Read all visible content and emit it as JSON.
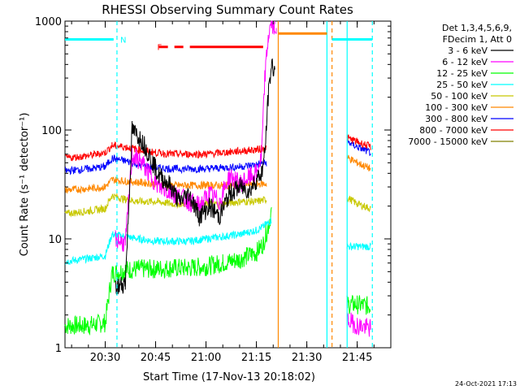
{
  "chart_data": {
    "type": "line",
    "title": "RHESSI Observing Summary Count Rates",
    "xlabel": "Start Time (17-Nov-13 20:18:02)",
    "ylabel": "Count Rate (s⁻¹ detector⁻¹)",
    "y_scale": "log",
    "ylim": [
      1,
      1000
    ],
    "xlim": [
      "20:18:02",
      "21:55:00"
    ],
    "x_ticks": [
      "20:30",
      "20:45",
      "21:00",
      "21:15",
      "21:30",
      "21:45"
    ],
    "y_ticks": [
      "1",
      "10",
      "100",
      "1000"
    ],
    "footer_date": "24-Oct-2021 17:13",
    "legend": {
      "header": [
        "Det 1,3,4,5,6,9,",
        "FDecim 1, Att 0"
      ],
      "placement": "right"
    },
    "series": [
      {
        "name": "3 - 6 keV",
        "color": "#000000",
        "x": [
          "20:33:00",
          "20:35:00",
          "20:36:00",
          "20:38:00",
          "20:41:00",
          "20:43:00",
          "20:46:00",
          "20:49:00",
          "20:52:00",
          "20:55:00",
          "20:58:00",
          "21:01:00",
          "21:04:00",
          "21:07:00",
          "21:10:00",
          "21:13:00",
          "21:15:00",
          "21:16:30",
          "21:17:30",
          "21:18:30",
          "21:19:30",
          "21:20:30"
        ],
        "y": [
          3.5,
          3.8,
          4.0,
          100,
          80,
          60,
          38,
          32,
          22,
          26,
          16,
          20,
          16,
          26,
          30,
          28,
          35,
          40,
          60,
          200,
          400,
          350
        ]
      },
      {
        "name": "6 - 12 keV",
        "color": "#ff00ff",
        "x": [
          "20:33:00",
          "20:36:00",
          "20:38:00",
          "20:41:00",
          "20:43:00",
          "20:46:00",
          "20:49:00",
          "20:52:00",
          "20:55:00",
          "20:58:00",
          "21:01:00",
          "21:04:00",
          "21:07:00",
          "21:10:00",
          "21:13:00",
          "21:15:00",
          "21:16:30",
          "21:17:30",
          "21:18:30",
          "21:19:30",
          "21:20:30",
          "21:42:00",
          "21:45:00",
          "21:49:00"
        ],
        "y": [
          10,
          9,
          58,
          50,
          40,
          30,
          27,
          25,
          22,
          20,
          26,
          22,
          38,
          32,
          37,
          40,
          55,
          300,
          700,
          1000,
          900,
          1.8,
          1.6,
          1.5
        ]
      },
      {
        "name": "12 - 25 keV",
        "color": "#00ff00",
        "x": [
          "20:18:02",
          "20:25:00",
          "20:30:00",
          "20:32:00",
          "20:36:00",
          "20:40:00",
          "20:45:00",
          "20:50:00",
          "20:55:00",
          "21:00:00",
          "21:05:00",
          "21:10:00",
          "21:15:00",
          "21:17:00",
          "21:18:30",
          "21:19:30",
          "21:42:00",
          "21:45:00",
          "21:49:00"
        ],
        "y": [
          1.6,
          1.6,
          1.7,
          4.8,
          5.2,
          5.3,
          5.3,
          5.4,
          5.4,
          5.6,
          6.0,
          6.5,
          7.5,
          9,
          13,
          18,
          2.5,
          2.5,
          2.4
        ]
      },
      {
        "name": "25 - 50 keV",
        "color": "#00ffff",
        "x": [
          "20:18:02",
          "20:25:00",
          "20:30:00",
          "20:32:00",
          "20:36:00",
          "20:40:00",
          "20:45:00",
          "20:50:00",
          "20:55:00",
          "21:00:00",
          "21:05:00",
          "21:10:00",
          "21:15:00",
          "21:17:00",
          "21:18:30",
          "21:19:30",
          "21:42:00",
          "21:45:00",
          "21:49:00"
        ],
        "y": [
          6.2,
          6.6,
          7.0,
          11,
          10.5,
          10,
          9.5,
          9.5,
          9.5,
          10,
          10.5,
          11,
          12,
          13,
          14,
          15,
          8.5,
          8.5,
          8.5
        ]
      },
      {
        "name": "50 - 100 keV",
        "color": "#c8c800",
        "x": [
          "20:18:02",
          "20:25:00",
          "20:30:00",
          "20:32:00",
          "20:36:00",
          "20:40:00",
          "20:45:00",
          "20:50:00",
          "20:55:00",
          "21:00:00",
          "21:05:00",
          "21:10:00",
          "21:15:00",
          "21:18:00",
          "21:42:00",
          "21:45:00",
          "21:49:00"
        ],
        "y": [
          17,
          18,
          19,
          25,
          23,
          22,
          22,
          21,
          21,
          21,
          21,
          22,
          22,
          23,
          24,
          21,
          19
        ]
      },
      {
        "name": "100 - 300 keV",
        "color": "#ff8800",
        "x": [
          "20:18:02",
          "20:25:00",
          "20:30:00",
          "20:32:00",
          "20:36:00",
          "20:40:00",
          "20:45:00",
          "20:50:00",
          "20:55:00",
          "21:00:00",
          "21:05:00",
          "21:10:00",
          "21:15:00",
          "21:18:00",
          "21:42:00",
          "21:45:00",
          "21:49:00"
        ],
        "y": [
          28,
          29,
          30,
          35,
          34,
          33,
          32,
          31,
          31,
          31,
          31,
          31,
          32,
          32,
          56,
          50,
          44
        ]
      },
      {
        "name": "300 - 800 keV",
        "color": "#0000ff",
        "x": [
          "20:18:02",
          "20:25:00",
          "20:30:00",
          "20:32:00",
          "20:36:00",
          "20:40:00",
          "20:45:00",
          "20:50:00",
          "20:55:00",
          "21:00:00",
          "21:05:00",
          "21:10:00",
          "21:15:00",
          "21:18:00",
          "21:42:00",
          "21:45:00",
          "21:49:00"
        ],
        "y": [
          42,
          44,
          46,
          55,
          52,
          48,
          45,
          44,
          44,
          44,
          45,
          46,
          48,
          50,
          78,
          70,
          62
        ]
      },
      {
        "name": "800 - 7000 keV",
        "color": "#ff0000",
        "x": [
          "20:18:02",
          "20:25:00",
          "20:30:00",
          "20:32:00",
          "20:36:00",
          "20:40:00",
          "20:45:00",
          "20:50:00",
          "20:55:00",
          "21:00:00",
          "21:05:00",
          "21:10:00",
          "21:15:00",
          "21:18:00",
          "21:42:00",
          "21:45:00",
          "21:49:00"
        ],
        "y": [
          55,
          58,
          62,
          72,
          70,
          66,
          62,
          60,
          60,
          60,
          62,
          64,
          66,
          68,
          85,
          78,
          70
        ]
      },
      {
        "name": "7000 - 15000 keV",
        "color": "#808000",
        "x": [],
        "y": []
      }
    ],
    "annotations": [
      {
        "text": "N",
        "x": "20:33:30",
        "y": 680,
        "color": "#00ffff"
      },
      {
        "text": "F",
        "x": "20:44:30",
        "y": 580,
        "color": "#ff0000"
      },
      {
        "text": "N",
        "x": "21:18:30",
        "y": 820,
        "color": "#ff00ff"
      }
    ],
    "flag_bars": [
      {
        "x0": "20:18:02",
        "x1": "20:32:30",
        "y": 680,
        "color": "#00ffff"
      },
      {
        "x0": "21:37:30",
        "x1": "21:49:30",
        "y": 680,
        "color": "#00ffff"
      },
      {
        "x0": "21:21:30",
        "x1": "21:36:00",
        "y": 770,
        "color": "#ff8800"
      },
      {
        "x0": "20:46:00",
        "x1": "21:17:00",
        "y": 580,
        "color": "#ff0000",
        "dashed_to": "20:56:00"
      }
    ],
    "vlines": [
      {
        "x": "20:33:30",
        "color": "#00ffff",
        "dashed": true
      },
      {
        "x": "21:21:30",
        "color": "#ff8800",
        "dashed": false
      },
      {
        "x": "21:36:00",
        "color": "#00ffff",
        "dashed": false
      },
      {
        "x": "21:37:30",
        "color": "#ff8800",
        "dashed": true
      },
      {
        "x": "21:42:00",
        "color": "#00ffff",
        "dashed": false
      },
      {
        "x": "21:49:30",
        "color": "#00ffff",
        "dashed": true
      }
    ],
    "gaps": [
      {
        "x0": "21:20:30",
        "x1": "21:42:00"
      }
    ]
  }
}
